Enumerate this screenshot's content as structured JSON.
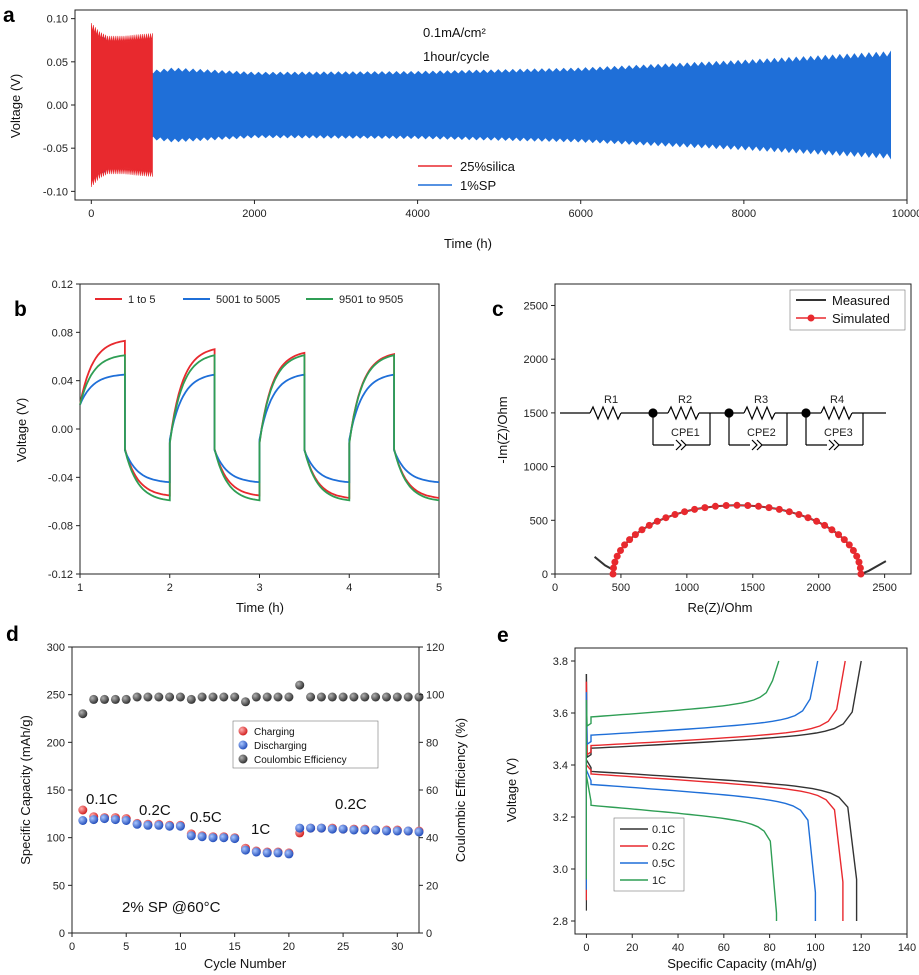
{
  "colors": {
    "red": "#e8292e",
    "blue": "#1f6fd8",
    "green": "#2f9e55",
    "black": "#333333",
    "sphere_red": "#e8292e",
    "sphere_blue": "#2a5fcf",
    "sphere_gray": "#404040"
  },
  "chart_data": [
    {
      "id": "a",
      "type": "line",
      "panel_label": "a",
      "xlabel": "Time (h)",
      "ylabel": "Voltage (V)",
      "xlim": [
        -200,
        10000
      ],
      "ylim": [
        -0.11,
        0.11
      ],
      "xticks": [
        0,
        2000,
        4000,
        6000,
        8000,
        10000
      ],
      "yticks": [
        -0.1,
        -0.05,
        0.0,
        0.05,
        0.1
      ],
      "ytick_labels": [
        "-0.10",
        "-0.05",
        "0.00",
        "0.05",
        "0.10"
      ],
      "annotation_lines": [
        "0.1mA/cm²",
        "1hour/cycle"
      ],
      "series": [
        {
          "name": "25%silica",
          "color": "#e8292e",
          "envelope": [
            [
              0,
              0.095
            ],
            [
              100,
              0.085
            ],
            [
              200,
              0.08
            ],
            [
              400,
              0.08
            ],
            [
              600,
              0.082
            ],
            [
              750,
              0.083
            ]
          ]
        },
        {
          "name": "1%SP",
          "color": "#1f6fd8",
          "envelope": [
            [
              0,
              0.08
            ],
            [
              100,
              0.06
            ],
            [
              150,
              0.1
            ],
            [
              200,
              0.06
            ],
            [
              750,
              0.04
            ],
            [
              1000,
              0.043
            ],
            [
              2000,
              0.038
            ],
            [
              4000,
              0.039
            ],
            [
              6000,
              0.043
            ],
            [
              8000,
              0.052
            ],
            [
              9800,
              0.062
            ]
          ]
        }
      ]
    },
    {
      "id": "b",
      "type": "line",
      "panel_label": "b",
      "xlabel": "Time (h)",
      "ylabel": "Voltage (V)",
      "xlim": [
        1,
        5
      ],
      "ylim": [
        -0.12,
        0.12
      ],
      "xticks": [
        1,
        2,
        3,
        4,
        5
      ],
      "yticks": [
        -0.12,
        -0.08,
        -0.04,
        0.0,
        0.04,
        0.08,
        0.12
      ],
      "ytick_labels": [
        "-0.12",
        "-0.08",
        "-0.04",
        "0.00",
        "0.04",
        "0.08",
        "0.12"
      ],
      "series": [
        {
          "name": "1 to 5",
          "color": "#e8292e",
          "peaks": [
            0.073,
            0.066,
            0.063,
            0.062
          ],
          "troughs": [
            -0.055,
            -0.055,
            -0.057,
            -0.057
          ]
        },
        {
          "name": "5001 to 5005",
          "color": "#1f6fd8",
          "peaks": [
            0.045,
            0.045,
            0.045,
            0.045
          ],
          "troughs": [
            -0.044,
            -0.044,
            -0.044,
            -0.044
          ]
        },
        {
          "name": "9501 to 9505",
          "color": "#2f9e55",
          "peaks": [
            0.061,
            0.061,
            0.061,
            0.061
          ],
          "troughs": [
            -0.059,
            -0.059,
            -0.059,
            -0.059
          ]
        }
      ]
    },
    {
      "id": "c",
      "type": "scatter",
      "panel_label": "c",
      "xlabel": "Re(Z)/Ohm",
      "ylabel": "-Im(Z)/Ohm",
      "xlim": [
        0,
        2700
      ],
      "ylim": [
        0,
        2700
      ],
      "xticks": [
        0,
        500,
        1000,
        1500,
        2000,
        2500
      ],
      "yticks": [
        0,
        500,
        1000,
        1500,
        2000,
        2500
      ],
      "ytick_labels": [
        "0",
        "500",
        "1000",
        "1500",
        "2000",
        "2500"
      ],
      "circuit_labels": [
        "R1",
        "R2",
        "R3",
        "R4",
        "CPE1",
        "CPE2",
        "CPE3"
      ],
      "series": [
        {
          "name": "Measured",
          "color": "#333333",
          "arc": {
            "center_x": 1380,
            "radius": 940,
            "peak_y": 640
          },
          "tail_low": [
            300,
            160
          ],
          "tail_high": [
            2510,
            120
          ]
        },
        {
          "name": "Simulated",
          "color": "#e8292e",
          "arc": {
            "center_x": 1380,
            "radius": 940,
            "peak_y": 640
          }
        }
      ]
    },
    {
      "id": "d",
      "type": "scatter",
      "panel_label": "d",
      "xlabel": "Cycle Number",
      "ylabel": "Specific Capacity (mAh/g)",
      "ylabel_right": "Coulombic Efficiency (%)",
      "xlim": [
        0,
        32
      ],
      "ylim": [
        0,
        300
      ],
      "ylim_right": [
        0,
        120
      ],
      "xticks": [
        0,
        5,
        10,
        15,
        20,
        25,
        30
      ],
      "yticks": [
        0,
        50,
        100,
        150,
        200,
        250,
        300
      ],
      "ytick_labels": [
        "0",
        "50",
        "100",
        "150",
        "200",
        "250",
        "300"
      ],
      "yticks_right": [
        0,
        20,
        40,
        60,
        80,
        100,
        120
      ],
      "ytick_labels_right": [
        "0",
        "20",
        "40",
        "60",
        "80",
        "100",
        "120"
      ],
      "rate_labels": [
        "0.1C",
        "0.2C",
        "0.5C",
        "1C",
        "0.2C"
      ],
      "annotation": "2% SP @60°C",
      "series": [
        {
          "name": "Charging",
          "color": "#e8292e",
          "x": [
            1,
            2,
            3,
            4,
            5,
            6,
            7,
            8,
            9,
            10,
            11,
            12,
            13,
            14,
            15,
            16,
            17,
            18,
            19,
            20,
            21,
            22,
            23,
            24,
            25,
            26,
            27,
            28,
            29,
            30,
            31,
            32
          ],
          "values": [
            129,
            122,
            121,
            121,
            120,
            115,
            114,
            114,
            113,
            113,
            104,
            102,
            101,
            101,
            100,
            89,
            86,
            85,
            85,
            84,
            105,
            110,
            110,
            110,
            109,
            109,
            109,
            108,
            108,
            108,
            107,
            107
          ]
        },
        {
          "name": "Discharging",
          "color": "#2a5fcf",
          "x": [
            1,
            2,
            3,
            4,
            5,
            6,
            7,
            8,
            9,
            10,
            11,
            12,
            13,
            14,
            15,
            16,
            17,
            18,
            19,
            20,
            21,
            22,
            23,
            24,
            25,
            26,
            27,
            28,
            29,
            30,
            31,
            32
          ],
          "values": [
            118,
            119,
            120,
            119,
            118,
            114,
            113,
            113,
            112,
            112,
            102,
            101,
            100,
            100,
            99,
            87,
            85,
            84,
            84,
            83,
            110,
            110,
            110,
            109,
            109,
            108,
            108,
            108,
            107,
            107,
            107,
            106
          ]
        },
        {
          "name": "Coulombic Efficiency",
          "color": "#404040",
          "axis": "right",
          "x": [
            1,
            2,
            3,
            4,
            5,
            6,
            7,
            8,
            9,
            10,
            11,
            12,
            13,
            14,
            15,
            16,
            17,
            18,
            19,
            20,
            21,
            22,
            23,
            24,
            25,
            26,
            27,
            28,
            29,
            30,
            31,
            32
          ],
          "values": [
            92,
            98,
            98,
            98,
            98,
            99,
            99,
            99,
            99,
            99,
            98,
            99,
            99,
            99,
            99,
            97,
            99,
            99,
            99,
            99,
            104,
            99,
            99,
            99,
            99,
            99,
            99,
            99,
            99,
            99,
            99,
            99
          ]
        }
      ]
    },
    {
      "id": "e",
      "type": "line",
      "panel_label": "e",
      "xlabel": "Specific Capacity (mAh/g)",
      "ylabel": "Voltage (V)",
      "xlim": [
        -5,
        140
      ],
      "ylim": [
        2.75,
        3.85
      ],
      "xticks": [
        0,
        20,
        40,
        60,
        80,
        100,
        120,
        140
      ],
      "yticks": [
        2.8,
        3.0,
        3.2,
        3.4,
        3.6,
        3.8
      ],
      "ytick_labels": [
        "2.8",
        "3.0",
        "3.2",
        "3.4",
        "3.6",
        "3.8"
      ],
      "series": [
        {
          "name": "0.1C",
          "color": "#333333",
          "cap": 120,
          "dcap": 118,
          "plat_c": 3.46,
          "plat_d": 3.38,
          "start_c": 3.75
        },
        {
          "name": "0.2C",
          "color": "#e8292e",
          "cap": 113,
          "dcap": 112,
          "plat_c": 3.47,
          "plat_d": 3.37,
          "start_c": 3.72
        },
        {
          "name": "0.5C",
          "color": "#1f6fd8",
          "cap": 101,
          "dcap": 100,
          "plat_c": 3.51,
          "plat_d": 3.33,
          "start_c": 3.68
        },
        {
          "name": "1C",
          "color": "#2f9e55",
          "cap": 84,
          "dcap": 83,
          "plat_c": 3.58,
          "plat_d": 3.25,
          "start_c": 3.65
        }
      ]
    }
  ]
}
